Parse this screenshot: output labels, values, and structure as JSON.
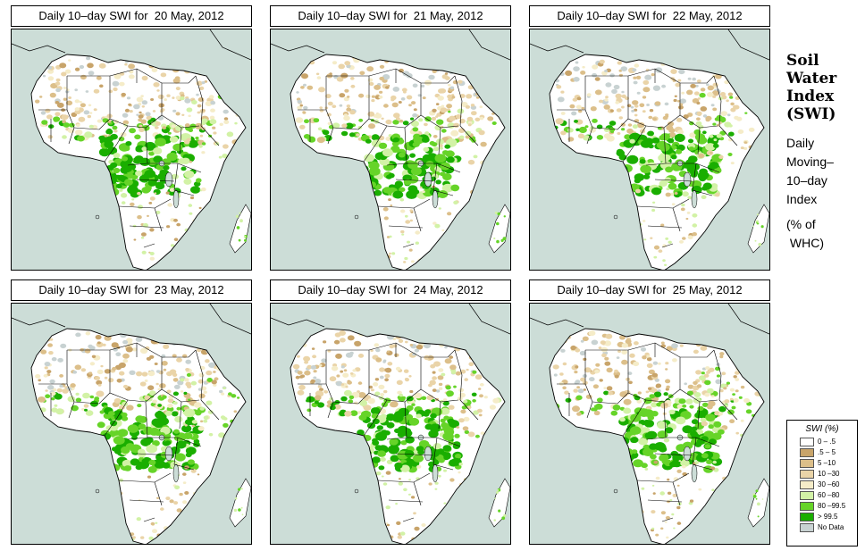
{
  "panels": [
    {
      "title": "Daily 10–day SWI for  20 May, 2012",
      "variant": 0
    },
    {
      "title": "Daily 10–day SWI for  21 May, 2012",
      "variant": 1
    },
    {
      "title": "Daily 10–day SWI for  22 May, 2012",
      "variant": 2
    },
    {
      "title": "Daily 10–day SWI for  23 May, 2012",
      "variant": 3
    },
    {
      "title": "Daily 10–day SWI for  24 May, 2012",
      "variant": 4
    },
    {
      "title": "Daily 10–day SWI for  25 May, 2012",
      "variant": 5
    }
  ],
  "side": {
    "title_lines": [
      "Soil",
      "Water",
      "Index",
      "(SWI)"
    ],
    "subtitle_lines": [
      "Daily",
      "Moving–",
      "10–day",
      "Index"
    ],
    "unit_lines": [
      "(% of",
      " WHC)"
    ]
  },
  "legend": {
    "title": "SWI (%)",
    "items": [
      {
        "label": "0 – .5",
        "color": "#ffffff"
      },
      {
        "label": ".5 – 5",
        "color": "#c8a46a"
      },
      {
        "label": "5 –10",
        "color": "#dcbf8a"
      },
      {
        "label": "10 –30",
        "color": "#ead4a8"
      },
      {
        "label": "30 –60",
        "color": "#f5ecc8"
      },
      {
        "label": "60 –80",
        "color": "#d2f2a6"
      },
      {
        "label": "80 –99.5",
        "color": "#66d428"
      },
      {
        "label": "> 99.5",
        "color": "#1aae00"
      },
      {
        "label": "No Data",
        "color": "#c8d2d2"
      }
    ]
  },
  "colors": {
    "ocean": "#ccddd7",
    "land": "#ffffff",
    "border": "#000000"
  }
}
